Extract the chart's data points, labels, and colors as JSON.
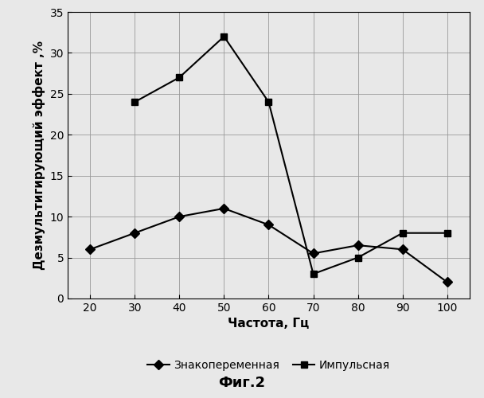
{
  "x_znak": [
    20,
    30,
    40,
    50,
    60,
    70,
    80,
    90,
    100
  ],
  "y_znak": [
    6,
    8,
    10,
    11,
    9,
    5.5,
    6.5,
    6,
    2
  ],
  "x_impuls": [
    30,
    40,
    50,
    60,
    70,
    80,
    90,
    100
  ],
  "y_impuls": [
    24,
    27,
    32,
    24,
    3,
    5,
    8,
    8
  ],
  "xlabel": "Частота, Гц",
  "ylabel": "Дезмультигирующий эффект ,%",
  "legend_znak": "Знакопеременная",
  "legend_impuls": "Импульсная",
  "caption": "Фиг.2",
  "xlim": [
    15,
    105
  ],
  "ylim": [
    0,
    35
  ],
  "xticks": [
    20,
    30,
    40,
    50,
    60,
    70,
    80,
    90,
    100
  ],
  "yticks": [
    0,
    5,
    10,
    15,
    20,
    25,
    30,
    35
  ],
  "line_color": "#000000",
  "bg_color": "#e8e8e8",
  "plot_bg_color": "#e8e8e8",
  "marker_znak": "D",
  "marker_impuls": "s",
  "marker_size": 6,
  "linewidth": 1.5,
  "grid_color": "#999999",
  "tick_fontsize": 10,
  "label_fontsize": 11,
  "legend_fontsize": 10,
  "caption_fontsize": 13
}
